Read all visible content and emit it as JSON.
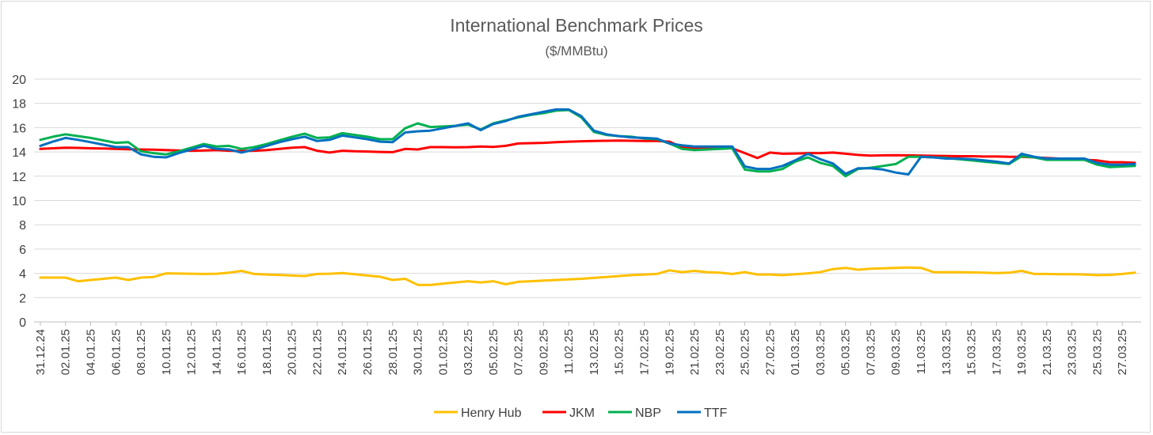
{
  "chart_data": {
    "type": "line",
    "title": "International Benchmark Prices",
    "subtitle": "($/MMBtu)",
    "xlabel": "",
    "ylabel": "",
    "ylim": [
      0,
      20
    ],
    "yticks": [
      0,
      2,
      4,
      6,
      8,
      10,
      12,
      14,
      16,
      18,
      20
    ],
    "grid": true,
    "legend_position": "bottom",
    "x": [
      "31.12.24",
      "01.01.25",
      "02.01.25",
      "03.01.25",
      "04.01.25",
      "05.01.25",
      "06.01.25",
      "07.01.25",
      "08.01.25",
      "09.01.25",
      "10.01.25",
      "11.01.25",
      "12.01.25",
      "13.01.25",
      "14.01.25",
      "15.01.25",
      "16.01.25",
      "17.01.25",
      "18.01.25",
      "19.01.25",
      "20.01.25",
      "21.01.25",
      "22.01.25",
      "23.01.25",
      "24.01.25",
      "25.01.25",
      "26.01.25",
      "27.01.25",
      "28.01.25",
      "29.01.25",
      "30.01.25",
      "31.01.25",
      "01.02.25",
      "02.02.25",
      "03.02.25",
      "04.02.25",
      "05.02.25",
      "06.02.25",
      "07.02.25",
      "08.02.25",
      "09.02.25",
      "10.02.25",
      "11.02.25",
      "12.02.25",
      "13.02.25",
      "14.02.25",
      "15.02.25",
      "16.02.25",
      "17.02.25",
      "18.02.25",
      "19.02.25",
      "20.02.25",
      "21.02.25",
      "22.02.25",
      "23.02.25",
      "24.02.25",
      "25.02.25",
      "26.02.25",
      "27.02.25",
      "28.02.25",
      "01.03.25",
      "02.03.25",
      "03.03.25",
      "04.03.25",
      "05.03.25",
      "06.03.25",
      "07.03.25",
      "08.03.25",
      "09.03.25",
      "10.03.25",
      "11.03.25",
      "12.03.25",
      "13.03.25",
      "14.03.25",
      "15.03.25",
      "16.03.25",
      "17.03.25",
      "18.03.25",
      "19.03.25",
      "20.03.25",
      "21.03.25",
      "22.03.25",
      "23.03.25",
      "24.03.25",
      "25.03.25",
      "26.03.25",
      "27.03.25",
      "28.03.25"
    ],
    "x_tick_labels": [
      "31.12.24",
      "02.01.25",
      "04.01.25",
      "06.01.25",
      "08.01.25",
      "10.01.25",
      "12.01.25",
      "14.01.25",
      "16.01.25",
      "18.01.25",
      "20.01.25",
      "22.01.25",
      "24.01.25",
      "26.01.25",
      "28.01.25",
      "30.01.25",
      "01.02.25",
      "03.02.25",
      "05.02.25",
      "07.02.25",
      "09.02.25",
      "11.02.25",
      "13.02.25",
      "15.02.25",
      "17.02.25",
      "19.02.25",
      "21.02.25",
      "23.02.25",
      "25.02.25",
      "27.02.25",
      "01.03.25",
      "03.03.25",
      "05.03.25",
      "07.03.25",
      "09.03.25",
      "11.03.25",
      "13.03.25",
      "15.03.25",
      "17.03.25",
      "19.03.25",
      "21.03.25",
      "23.03.25",
      "25.03.25",
      "27.03.25"
    ],
    "series": [
      {
        "name": "Henry Hub",
        "color": "#FFC000",
        "values": [
          3.65,
          3.65,
          3.65,
          3.35,
          3.45,
          3.55,
          3.65,
          3.45,
          3.65,
          3.7,
          4.0,
          3.98,
          3.97,
          3.95,
          3.97,
          4.05,
          4.2,
          3.95,
          3.9,
          3.87,
          3.82,
          3.78,
          3.95,
          3.97,
          4.02,
          3.92,
          3.82,
          3.72,
          3.45,
          3.55,
          3.05,
          3.05,
          3.15,
          3.25,
          3.35,
          3.25,
          3.35,
          3.1,
          3.3,
          3.35,
          3.4,
          3.45,
          3.5,
          3.55,
          3.62,
          3.7,
          3.78,
          3.85,
          3.9,
          3.95,
          4.25,
          4.1,
          4.2,
          4.1,
          4.05,
          3.95,
          4.1,
          3.9,
          3.9,
          3.85,
          3.92,
          4.0,
          4.1,
          4.35,
          4.45,
          4.3,
          4.38,
          4.42,
          4.45,
          4.48,
          4.45,
          4.1,
          4.1,
          4.1,
          4.08,
          4.05,
          4.02,
          4.05,
          4.2,
          3.95,
          3.95,
          3.93,
          3.92,
          3.9,
          3.85,
          3.87,
          3.95,
          4.05
        ]
      },
      {
        "name": "JKM",
        "color": "#FF0000",
        "values": [
          14.25,
          14.3,
          14.35,
          14.33,
          14.3,
          14.28,
          14.25,
          14.22,
          14.2,
          14.18,
          14.15,
          14.12,
          14.1,
          14.12,
          14.15,
          14.1,
          14.08,
          14.1,
          14.15,
          14.25,
          14.35,
          14.4,
          14.1,
          13.95,
          14.1,
          14.05,
          14.03,
          14.0,
          13.98,
          14.25,
          14.2,
          14.4,
          14.4,
          14.38,
          14.4,
          14.45,
          14.42,
          14.5,
          14.7,
          14.72,
          14.75,
          14.8,
          14.85,
          14.88,
          14.9,
          14.92,
          14.93,
          14.92,
          14.9,
          14.9,
          14.85,
          14.4,
          14.3,
          14.3,
          14.3,
          14.3,
          13.9,
          13.5,
          13.95,
          13.85,
          13.87,
          13.9,
          13.9,
          13.95,
          13.85,
          13.75,
          13.7,
          13.72,
          13.73,
          13.72,
          13.7,
          13.68,
          13.67,
          13.65,
          13.65,
          13.62,
          13.62,
          13.6,
          13.6,
          13.55,
          13.5,
          13.45,
          13.4,
          13.35,
          13.3,
          13.15,
          13.15,
          13.1
        ]
      },
      {
        "name": "NBP",
        "color": "#00B050",
        "values": [
          15.0,
          15.25,
          15.45,
          15.3,
          15.15,
          14.95,
          14.75,
          14.8,
          14.05,
          13.9,
          13.8,
          14.05,
          14.35,
          14.65,
          14.45,
          14.5,
          14.25,
          14.4,
          14.65,
          14.95,
          15.25,
          15.5,
          15.15,
          15.2,
          15.55,
          15.4,
          15.25,
          15.05,
          15.05,
          15.95,
          16.35,
          16.05,
          16.1,
          16.15,
          16.25,
          15.85,
          16.35,
          16.6,
          16.85,
          17.05,
          17.2,
          17.4,
          17.45,
          16.85,
          15.65,
          15.4,
          15.3,
          15.25,
          15.1,
          15.05,
          14.7,
          14.25,
          14.15,
          14.2,
          14.25,
          14.3,
          12.55,
          12.4,
          12.4,
          12.6,
          13.2,
          13.55,
          13.1,
          12.85,
          12.0,
          12.6,
          12.7,
          12.85,
          13.0,
          13.6,
          13.6,
          13.55,
          13.5,
          13.4,
          13.3,
          13.2,
          13.1,
          13.0,
          13.65,
          13.55,
          13.35,
          13.35,
          13.35,
          13.35,
          12.95,
          12.75,
          12.8,
          12.85
        ]
      },
      {
        "name": "TTF",
        "color": "#0070C0",
        "values": [
          14.5,
          14.85,
          15.15,
          15.0,
          14.8,
          14.6,
          14.4,
          14.4,
          13.8,
          13.6,
          13.55,
          13.9,
          14.2,
          14.5,
          14.25,
          14.2,
          13.95,
          14.2,
          14.5,
          14.8,
          15.05,
          15.25,
          14.9,
          15.0,
          15.35,
          15.2,
          15.05,
          14.85,
          14.8,
          15.6,
          15.7,
          15.75,
          15.95,
          16.15,
          16.35,
          15.8,
          16.3,
          16.55,
          16.9,
          17.1,
          17.3,
          17.5,
          17.5,
          16.95,
          15.75,
          15.45,
          15.3,
          15.2,
          15.15,
          15.1,
          14.7,
          14.55,
          14.45,
          14.45,
          14.45,
          14.45,
          12.8,
          12.6,
          12.6,
          12.85,
          13.3,
          13.85,
          13.4,
          13.05,
          12.2,
          12.65,
          12.65,
          12.55,
          12.3,
          12.15,
          13.6,
          13.55,
          13.45,
          13.45,
          13.4,
          13.3,
          13.2,
          13.05,
          13.85,
          13.6,
          13.45,
          13.45,
          13.45,
          13.45,
          13.1,
          12.95,
          12.95,
          13.0
        ]
      }
    ]
  }
}
